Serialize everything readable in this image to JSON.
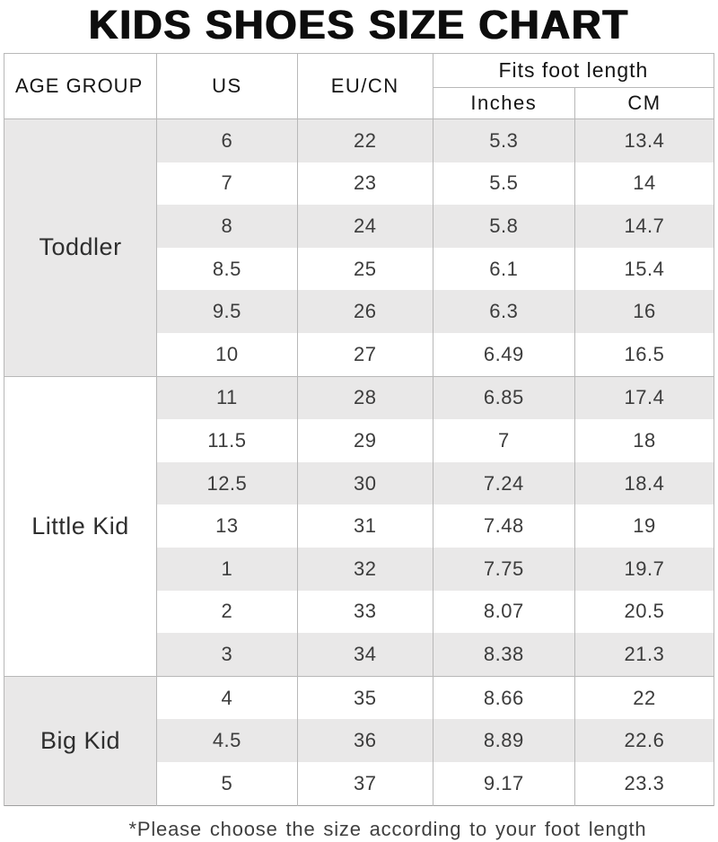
{
  "title": "KIDS SHOES SIZE CHART",
  "table": {
    "headers": {
      "age_group": "AGE GROUP",
      "us": "US",
      "eu_cn": "EU/CN",
      "fits": "Fits foot length",
      "inches": "Inches",
      "cm": "CM"
    }
  },
  "chart_data": {
    "type": "table",
    "title": "KIDS SHOES SIZE CHART",
    "columns": [
      "AGE GROUP",
      "US",
      "EU/CN",
      "Fits foot length (Inches)",
      "Fits foot length (CM)"
    ],
    "groups": [
      {
        "label": "Toddler",
        "rows": [
          [
            "6",
            "22",
            "5.3",
            "13.4"
          ],
          [
            "7",
            "23",
            "5.5",
            "14"
          ],
          [
            "8",
            "24",
            "5.8",
            "14.7"
          ],
          [
            "8.5",
            "25",
            "6.1",
            "15.4"
          ],
          [
            "9.5",
            "26",
            "6.3",
            "16"
          ],
          [
            "10",
            "27",
            "6.49",
            "16.5"
          ]
        ]
      },
      {
        "label": "Little Kid",
        "rows": [
          [
            "11",
            "28",
            "6.85",
            "17.4"
          ],
          [
            "11.5",
            "29",
            "7",
            "18"
          ],
          [
            "12.5",
            "30",
            "7.24",
            "18.4"
          ],
          [
            "13",
            "31",
            "7.48",
            "19"
          ],
          [
            "1",
            "32",
            "7.75",
            "19.7"
          ],
          [
            "2",
            "33",
            "8.07",
            "20.5"
          ],
          [
            "3",
            "34",
            "8.38",
            "21.3"
          ]
        ]
      },
      {
        "label": "Big Kid",
        "rows": [
          [
            "4",
            "35",
            "8.66",
            "22"
          ],
          [
            "4.5",
            "36",
            "8.89",
            "22.6"
          ],
          [
            "5",
            "37",
            "9.17",
            "23.3"
          ]
        ]
      }
    ]
  },
  "footnote": "*Please choose the size according to your foot length",
  "colors": {
    "stripe": "#e9e8e8",
    "border": "#b8b8b8",
    "outer_border": "#9f9f9f",
    "data_text": "#3c3c3c",
    "title_text": "#0d0d0d"
  }
}
